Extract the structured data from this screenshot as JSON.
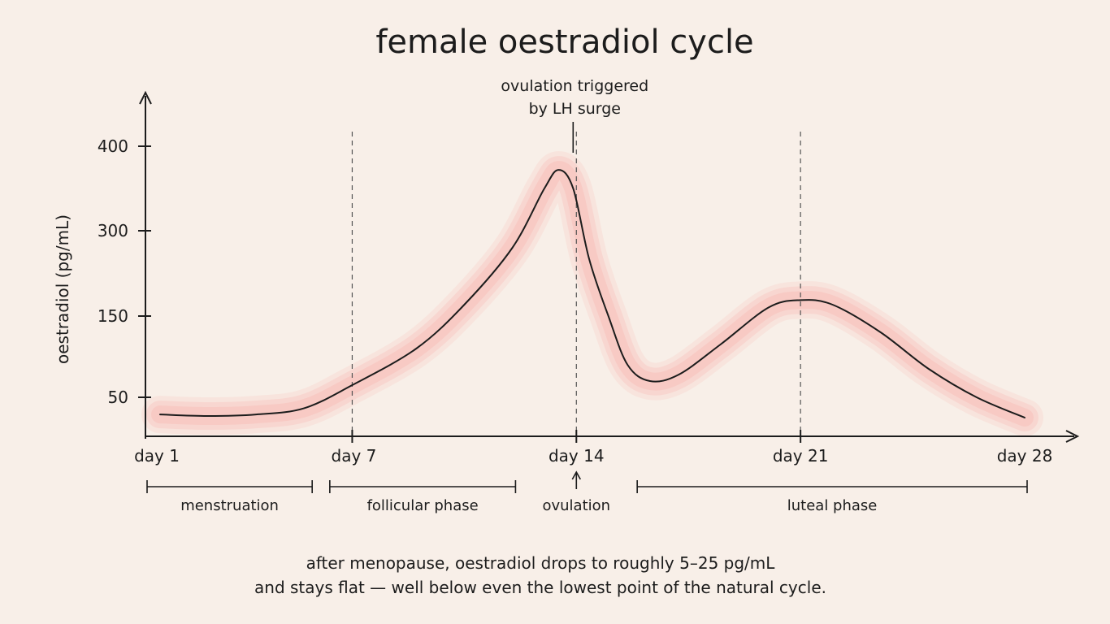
{
  "chart_data": {
    "type": "line",
    "title": "female oestradiol cycle",
    "xlabel": "",
    "ylabel": "oestradiol (pg/mL)",
    "xlim": [
      1,
      28
    ],
    "y_ticks": [
      50,
      150,
      300,
      400
    ],
    "x_ticks": [
      {
        "day": 1,
        "label": "day 1"
      },
      {
        "day": 7,
        "label": "day 7"
      },
      {
        "day": 14,
        "label": "day 14"
      },
      {
        "day": 21,
        "label": "day 21"
      },
      {
        "day": 28,
        "label": "day 28"
      }
    ],
    "reference_days": [
      7,
      14,
      21
    ],
    "series": [
      {
        "values": [
          {
            "day": 1,
            "value": 28
          },
          {
            "day": 2.5,
            "value": 26
          },
          {
            "day": 4,
            "value": 28
          },
          {
            "day": 5.5,
            "value": 36
          },
          {
            "day": 7,
            "value": 65
          },
          {
            "day": 9,
            "value": 110
          },
          {
            "day": 10.5,
            "value": 170
          },
          {
            "day": 12,
            "value": 270
          },
          {
            "day": 13,
            "value": 350
          },
          {
            "day": 13.45,
            "value": 372
          },
          {
            "day": 13.9,
            "value": 350
          },
          {
            "day": 14.4,
            "value": 250
          },
          {
            "day": 15,
            "value": 150
          },
          {
            "day": 15.6,
            "value": 90
          },
          {
            "day": 16.3,
            "value": 70
          },
          {
            "day": 17.2,
            "value": 78
          },
          {
            "day": 18.5,
            "value": 115
          },
          {
            "day": 20,
            "value": 165
          },
          {
            "day": 21,
            "value": 178
          },
          {
            "day": 22,
            "value": 170
          },
          {
            "day": 23.5,
            "value": 130
          },
          {
            "day": 25,
            "value": 85
          },
          {
            "day": 26.5,
            "value": 50
          },
          {
            "day": 28,
            "value": 24
          }
        ],
        "color": "#1c1c1c",
        "band_color": "#f9bdb6"
      }
    ],
    "annotations": [
      {
        "day": 14,
        "text_lines": [
          "ovulation triggered",
          "by LH surge"
        ]
      }
    ],
    "phases": [
      {
        "label": "menstruation",
        "start_day": 1,
        "end_day": 5.75
      },
      {
        "label": "follicular phase",
        "start_day": 6.3,
        "end_day": 12.1
      },
      {
        "label": "ovulation",
        "start_day": 14,
        "end_day": 14
      },
      {
        "label": "luteal phase",
        "start_day": 15.9,
        "end_day": 28
      }
    ]
  },
  "footnote": {
    "line1": "after menopause, oestradiol drops to roughly 5–25 pg/mL",
    "line2": "and stays flat — well below even the lowest point of the natural cycle."
  }
}
